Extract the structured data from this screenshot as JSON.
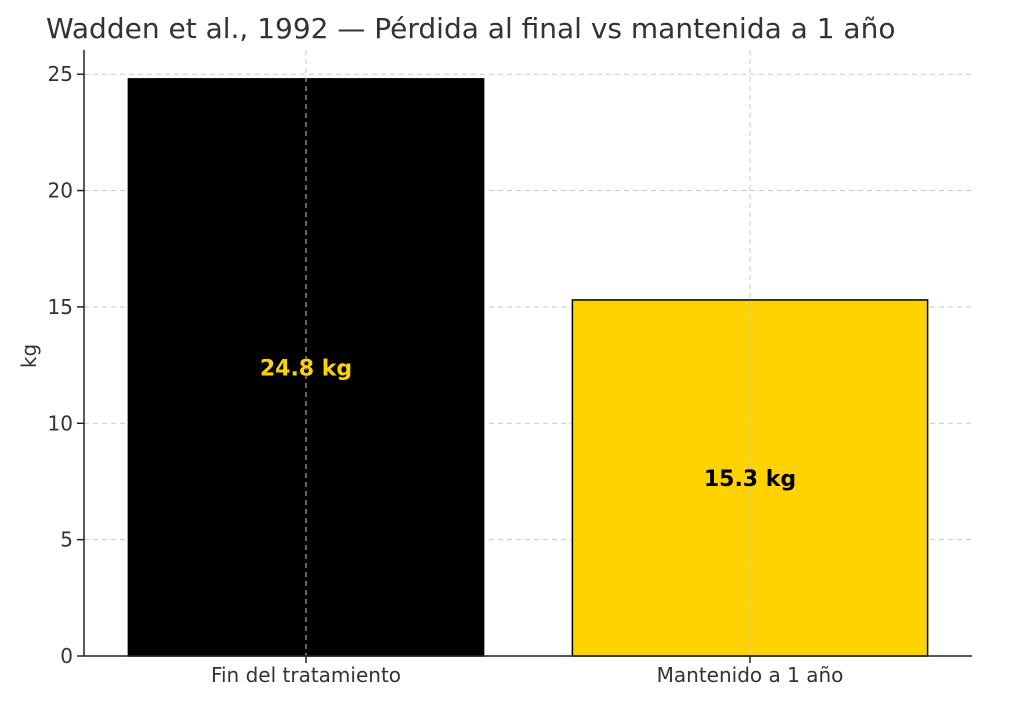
{
  "chart_data": {
    "type": "bar",
    "title": "Wadden et al., 1992 — Pérdida al final vs mantenida a 1 año",
    "xlabel": "",
    "ylabel": "kg",
    "ylim": [
      0,
      26.04
    ],
    "yticks": [
      0,
      5,
      10,
      15,
      20,
      25
    ],
    "grid": true,
    "categories": [
      "Fin del tratamiento",
      "Mantenido a 1 año"
    ],
    "values": [
      24.8,
      15.3
    ],
    "bar_colors": [
      "#000000",
      "#FFD300"
    ],
    "bar_label_colors": [
      "#FFD300",
      "#000000"
    ],
    "bar_labels": [
      "24.8 kg",
      "15.3 kg"
    ]
  }
}
